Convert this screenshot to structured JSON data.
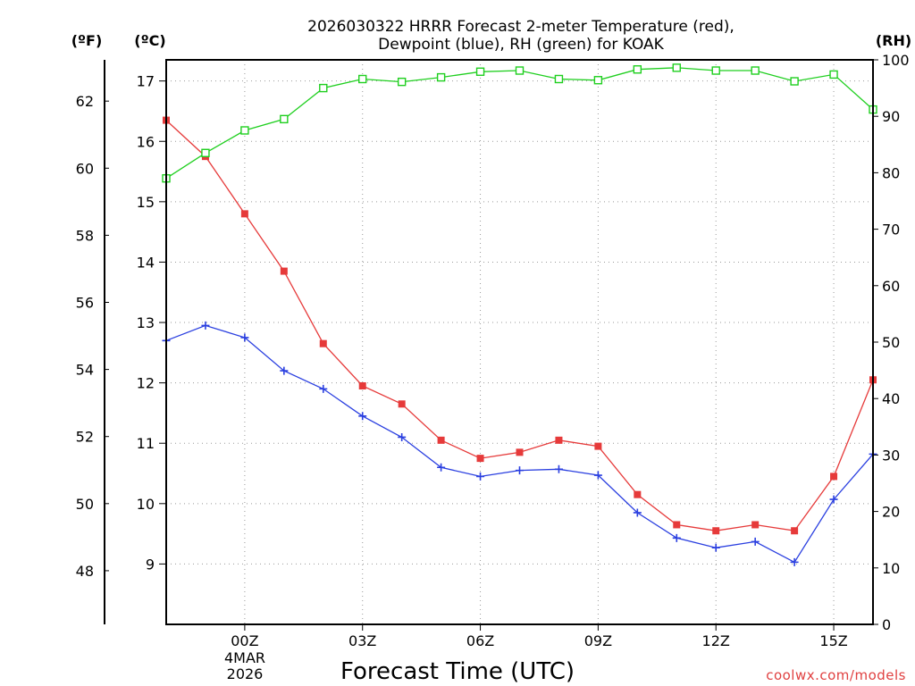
{
  "chart_data": {
    "type": "line",
    "title_line1": "2026030322 HRRR Forecast 2-meter Temperature (red),",
    "title_line2": "Dewpoint (blue), RH (green) for KOAK",
    "xlabel": "Forecast Time (UTC)",
    "credit": "coolwx.com/models",
    "date_label_line1": "4MAR",
    "date_label_line2": "2026",
    "units": {
      "fahrenheit": "(ºF)",
      "celsius": "(ºC)",
      "rh": "(RH)"
    },
    "x": [
      -2,
      -1,
      0,
      1,
      2,
      3,
      4,
      5,
      6,
      7,
      8,
      9,
      10,
      11,
      12,
      13,
      14,
      15,
      16
    ],
    "xlim": [
      -2,
      16
    ],
    "x_ticks": [
      {
        "value": 0,
        "label": "00Z"
      },
      {
        "value": 3,
        "label": "03Z"
      },
      {
        "value": 6,
        "label": "06Z"
      },
      {
        "value": 9,
        "label": "09Z"
      },
      {
        "value": 12,
        "label": "12Z"
      },
      {
        "value": 15,
        "label": "15Z"
      }
    ],
    "ylim_celsius": [
      8.0,
      17.35
    ],
    "y_ticks_celsius": [
      9,
      10,
      11,
      12,
      13,
      14,
      15,
      16,
      17
    ],
    "y_ticks_fahrenheit": [
      48,
      50,
      52,
      54,
      56,
      58,
      60,
      62
    ],
    "ylim_rh": [
      0,
      100
    ],
    "y_ticks_rh": [
      0,
      10,
      20,
      30,
      40,
      50,
      60,
      70,
      80,
      90,
      100
    ],
    "series": [
      {
        "name": "Temperature",
        "axis": "celsius",
        "color": "#e63a3a",
        "marker": "filled-square",
        "values": [
          16.35,
          15.75,
          14.8,
          13.85,
          12.65,
          11.95,
          11.65,
          11.05,
          10.75,
          10.85,
          11.05,
          10.95,
          10.15,
          9.65,
          9.55,
          9.65,
          9.55,
          10.45,
          12.05
        ]
      },
      {
        "name": "Dewpoint",
        "axis": "celsius",
        "color": "#2a3fe0",
        "marker": "plus",
        "values": [
          12.7,
          12.95,
          12.75,
          12.2,
          11.9,
          11.45,
          11.1,
          10.6,
          10.45,
          10.55,
          10.57,
          10.47,
          9.85,
          9.43,
          9.27,
          9.37,
          9.03,
          10.07,
          10.82
        ]
      },
      {
        "name": "Relative Humidity",
        "axis": "rh",
        "color": "#1fcf1f",
        "marker": "open-square",
        "values": [
          79,
          83.5,
          87.5,
          89.5,
          95,
          96.6,
          96.1,
          96.9,
          97.9,
          98.1,
          96.6,
          96.4,
          98.3,
          98.6,
          98.1,
          98.1,
          96.2,
          97.4,
          91.2
        ]
      }
    ]
  }
}
